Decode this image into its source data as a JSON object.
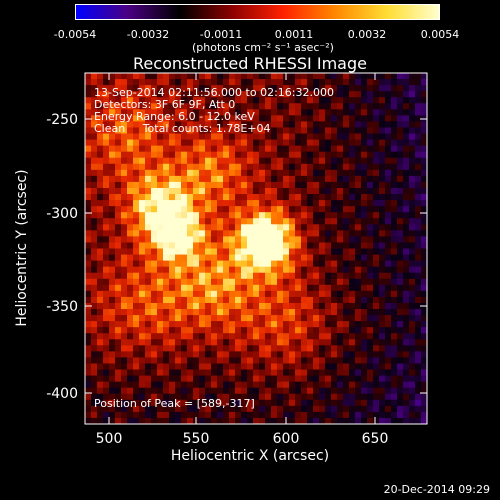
{
  "colorbar": {
    "ticks": [
      "-0.0054",
      "-0.0032",
      "-0.0011",
      "0.0011",
      "0.0032",
      "0.0054"
    ],
    "units": "(photons cm⁻² s⁻¹ asec⁻²)",
    "colormap": [
      "#0000ff",
      "#4b0082",
      "#000000",
      "#8b0000",
      "#ff2200",
      "#ff8800",
      "#ffdd33",
      "#ffffcc"
    ]
  },
  "chart_data": {
    "type": "heatmap",
    "title": "Reconstructed RHESSI Image",
    "xlabel": "Heliocentric X (arcsec)",
    "ylabel": "Heliocentric Y (arcsec)",
    "x_ticks": [
      "500",
      "550",
      "600",
      "650"
    ],
    "y_ticks": [
      "-250",
      "-300",
      "-350",
      "-400"
    ],
    "xlim": [
      487,
      680
    ],
    "ylim": [
      -415,
      -227
    ],
    "peak": {
      "x": 589,
      "y": -317
    },
    "annotations": {
      "time": "13-Sep-2014 02:11:56.000 to 02:16:32.000",
      "detectors": "Detectors: 3F 6F 9F, Att 0",
      "energy": "Energy Range: 6.0 - 12.0 keV",
      "clean": "Clean     Total counts: 1.78E+04",
      "peak_text": "Position of Peak = [589,-317]"
    },
    "grid": false
  },
  "footer": "20-Dec-2014 09:29"
}
